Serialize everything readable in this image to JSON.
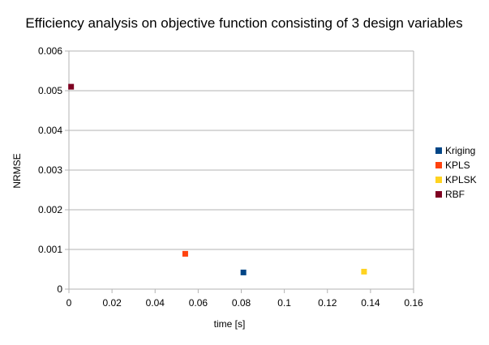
{
  "chart_data": {
    "type": "scatter",
    "title": "Efficiency analysis on objective function consisting of 3 design variables",
    "xlabel": "time [s]",
    "ylabel": "NRMSE",
    "xlim": [
      0,
      0.16
    ],
    "ylim": [
      0,
      0.006
    ],
    "x_ticks": [
      "0",
      "0.02",
      "0.04",
      "0.06",
      "0.08",
      "0.1",
      "0.12",
      "0.14",
      "0.16"
    ],
    "y_ticks": [
      "0",
      "0.001",
      "0.002",
      "0.003",
      "0.004",
      "0.005",
      "0.006"
    ],
    "grid": "horizontal",
    "legend_position": "right",
    "series": [
      {
        "name": "Kriging",
        "color": "#004586",
        "x": [
          0.081
        ],
        "y": [
          0.00042
        ]
      },
      {
        "name": "KPLS",
        "color": "#ff420e",
        "x": [
          0.054
        ],
        "y": [
          0.00089
        ]
      },
      {
        "name": "KPLSK",
        "color": "#ffd320",
        "x": [
          0.137
        ],
        "y": [
          0.00044
        ]
      },
      {
        "name": "RBF",
        "color": "#7e0021",
        "x": [
          0.001
        ],
        "y": [
          0.0051
        ]
      }
    ]
  }
}
